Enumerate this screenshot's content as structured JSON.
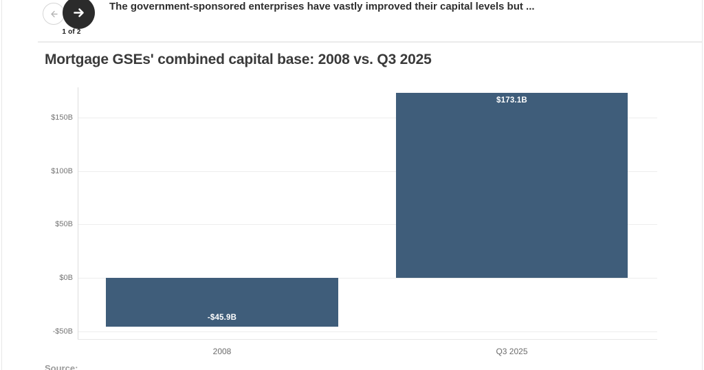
{
  "header": {
    "caption": "The government-sponsored enterprises have vastly improved their capital levels but ...",
    "page_indicator": "1 of 2",
    "icons": {
      "prev": "arrow-left",
      "next": "arrow-right"
    }
  },
  "title": "Mortgage GSEs' combined capital base: 2008 vs. Q3 2025",
  "source_line": "Source: ...",
  "colors": {
    "bar": "#3f5d7a",
    "bar_label": "#ffffff",
    "next_button_bg": "#2b2b2b",
    "gridline": "#ededed"
  },
  "chart_data": {
    "type": "bar",
    "title": "Mortgage GSEs' combined capital base: 2008 vs. Q3 2025",
    "categories": [
      "2008",
      "Q3 2025"
    ],
    "values": [
      -45.9,
      173.1
    ],
    "value_labels": [
      "-$45.9B",
      "$173.1B"
    ],
    "xlabel": "",
    "ylabel": "",
    "yticks": [
      150,
      100,
      50,
      0,
      -50
    ],
    "ytick_labels": [
      "$150B",
      "$100B",
      "$50B",
      "$0B",
      "-$50B"
    ],
    "ylim": [
      -60,
      178
    ],
    "unit": "billions USD",
    "grid": true,
    "legend": false,
    "bar_color": "#3f5d7a",
    "label_color": "#ffffff"
  }
}
